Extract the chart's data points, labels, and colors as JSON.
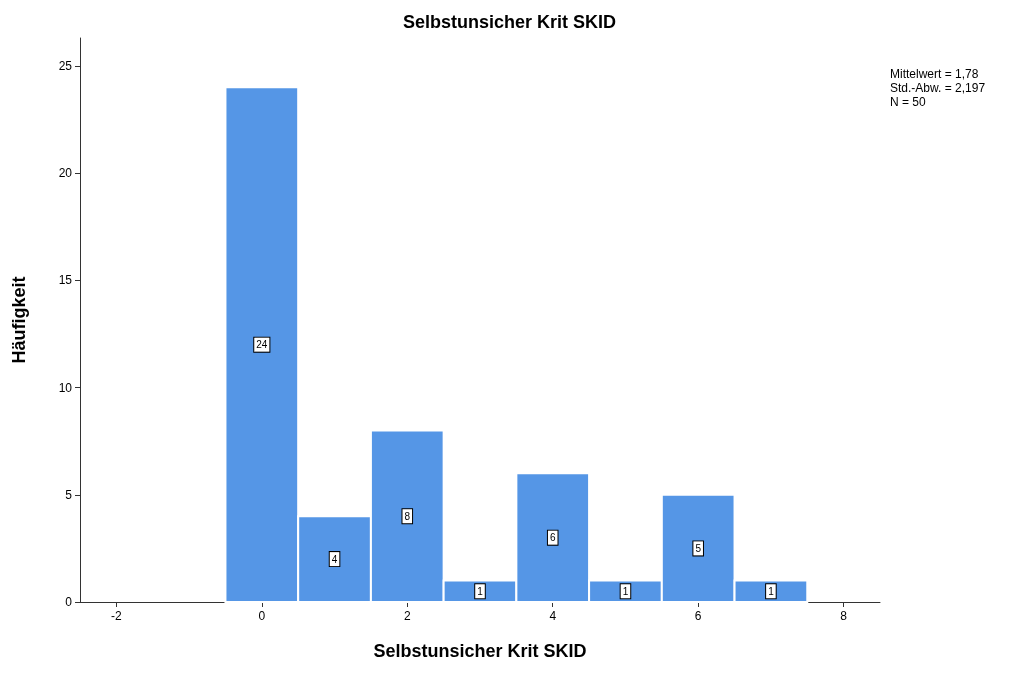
{
  "chart_data": {
    "type": "histogram",
    "title": "Selbstunsicher Krit SKID",
    "xlabel": "Selbstunsicher Krit SKID",
    "ylabel": "Häufigkeit",
    "bins": [
      -0.5,
      0.5,
      1.5,
      2.5,
      3.5,
      4.5,
      5.5,
      6.5,
      7.5
    ],
    "values": [
      24,
      4,
      8,
      1,
      6,
      1,
      5,
      1
    ],
    "color": "#5596e6",
    "xlim": [
      -2.5,
      8.5
    ],
    "xticks": [
      -2,
      0,
      2,
      4,
      6,
      8
    ],
    "ylim": [
      0,
      26.3
    ],
    "yticks": [
      0,
      5,
      10,
      15,
      20,
      25
    ],
    "data_labels": true,
    "grid": false,
    "annotations": [
      "Mittelwert = 1,78",
      "Std.-Abw. = 2,197",
      "N = 50"
    ]
  }
}
